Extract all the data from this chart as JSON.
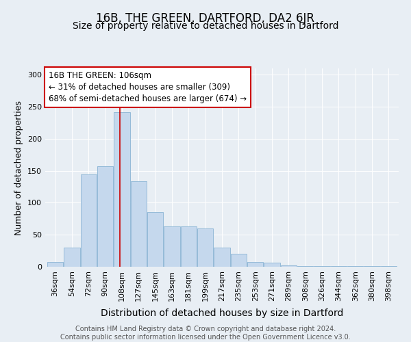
{
  "title": "16B, THE GREEN, DARTFORD, DA2 6JR",
  "subtitle": "Size of property relative to detached houses in Dartford",
  "xlabel": "Distribution of detached houses by size in Dartford",
  "ylabel": "Number of detached properties",
  "categories": [
    "36sqm",
    "54sqm",
    "72sqm",
    "90sqm",
    "108sqm",
    "127sqm",
    "145sqm",
    "163sqm",
    "181sqm",
    "199sqm",
    "217sqm",
    "235sqm",
    "253sqm",
    "271sqm",
    "289sqm",
    "308sqm",
    "326sqm",
    "344sqm",
    "362sqm",
    "380sqm",
    "398sqm"
  ],
  "values": [
    8,
    30,
    144,
    157,
    242,
    134,
    85,
    63,
    63,
    60,
    30,
    20,
    8,
    6,
    2,
    1,
    1,
    1,
    1,
    1,
    1
  ],
  "bar_color": "#c5d8ed",
  "bar_edge_color": "#8ab4d4",
  "vline_color": "#cc0000",
  "box_facecolor": "#ffffff",
  "box_edgecolor": "#cc0000",
  "background_color": "#e8eef4",
  "title_fontsize": 12,
  "subtitle_fontsize": 10,
  "xlabel_fontsize": 10,
  "ylabel_fontsize": 9,
  "tick_fontsize": 8,
  "annotation_fontsize": 8.5,
  "footer_fontsize": 7,
  "marker_label": "16B THE GREEN: 106sqm",
  "annotation_line1": "← 31% of detached houses are smaller (309)",
  "annotation_line2": "68% of semi-detached houses are larger (674) →",
  "footer_text": "Contains HM Land Registry data © Crown copyright and database right 2024.\nContains public sector information licensed under the Open Government Licence v3.0.",
  "ylim": [
    0,
    310
  ],
  "vline_x_index": 3.89
}
